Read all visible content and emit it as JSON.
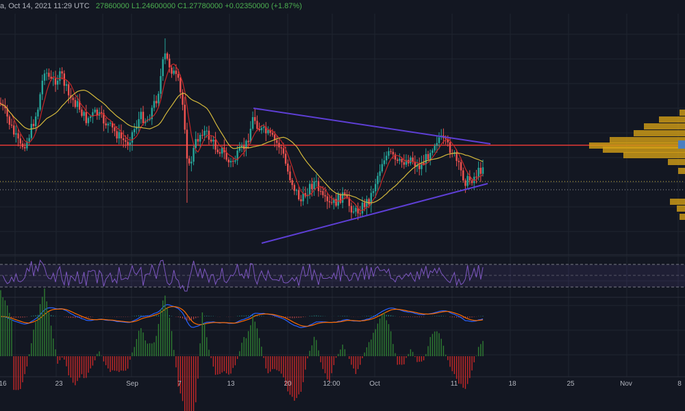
{
  "header": {
    "symbol_fragment": "a, Oct 14, 2021 11:29 UTC",
    "ohlc": "27860000  L1.24600000  C1.27780000  +0.02350000 (+1.87%)"
  },
  "colors": {
    "background": "#131722",
    "grid": "#1f2430",
    "up": "#26a69a",
    "down": "#ef5350",
    "ma_fast": "#c62828",
    "ma_slow": "#d4b93c",
    "trendline": "#5e3fd6",
    "horizontal_level": "#e53935",
    "volume_profile": "#d4a017",
    "rsi": "#7e57c2",
    "macd_line": "#2962ff",
    "signal_line": "#ff6d00"
  },
  "chart_data": {
    "type": "candlestick",
    "x_tick_labels": [
      "16",
      "23",
      "Sep",
      "7",
      "13",
      "20",
      "12:00",
      "Oct",
      "11",
      "18",
      "25",
      "Nov",
      "8"
    ],
    "price_last_close": 1.2778,
    "horizontal_level_label": "",
    "trendlines": [
      {
        "name": "upper",
        "from_date": "Sep 15",
        "to_date": "Oct 14"
      },
      {
        "name": "lower",
        "from_date": "Sep 17",
        "to_date": "Oct 14"
      }
    ],
    "indicators": [
      "RSI",
      "MACD",
      "Histogram"
    ]
  }
}
